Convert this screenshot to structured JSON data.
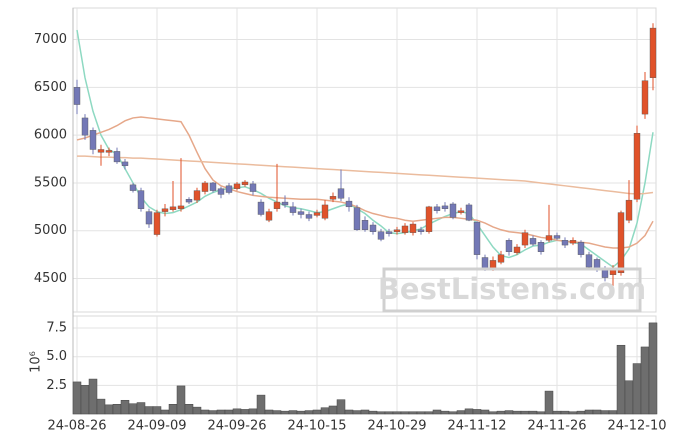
{
  "chart_data": [
    {
      "type": "candlestick",
      "watermark": "BestListens.com",
      "open": [
        6500,
        6180,
        6050,
        5820,
        5820,
        5830,
        5720,
        5480,
        5420,
        5200,
        4960,
        5200,
        5220,
        5230,
        5330,
        5320,
        5410,
        5500,
        5440,
        5470,
        5440,
        5480,
        5490,
        5300,
        5110,
        5230,
        5300,
        5250,
        5200,
        5170,
        5160,
        5130,
        5330,
        5440,
        5310,
        5240,
        5110,
        5060,
        4990,
        4990,
        4990,
        4980,
        4980,
        5010,
        4990,
        5250,
        5260,
        5280,
        5190,
        5270,
        5090,
        4720,
        4600,
        4670,
        4900,
        4770,
        4850,
        4920,
        4880,
        4900,
        4950,
        4900,
        4870,
        4880,
        4750,
        4700,
        4610,
        4540,
        4560,
        5110,
        5330,
        6220,
        6600
      ],
      "high": [
        6580,
        6220,
        6080,
        5900,
        5870,
        5870,
        5750,
        5500,
        5450,
        5230,
        5220,
        5280,
        5520,
        5760,
        5350,
        5450,
        5520,
        5510,
        5460,
        5500,
        5510,
        5530,
        5520,
        5330,
        5230,
        5700,
        5370,
        5300,
        5230,
        5200,
        5220,
        5320,
        5400,
        5640,
        5350,
        5270,
        5150,
        5090,
        5020,
        5020,
        5040,
        5080,
        5090,
        5040,
        5260,
        5280,
        5300,
        5300,
        5240,
        5290,
        5100,
        4750,
        4730,
        4790,
        4920,
        4860,
        5010,
        4950,
        4900,
        5270,
        4980,
        4930,
        4930,
        4900,
        4780,
        4720,
        4630,
        4640,
        5210,
        5530,
        6100,
        6660,
        7170
      ],
      "low": [
        6220,
        5950,
        5800,
        5680,
        5780,
        5700,
        5640,
        5400,
        5200,
        5030,
        4940,
        5150,
        5200,
        5200,
        5280,
        5290,
        5380,
        5400,
        5340,
        5380,
        5420,
        5460,
        5370,
        5150,
        5090,
        5200,
        5240,
        5160,
        5130,
        5100,
        5140,
        5110,
        5300,
        5310,
        5200,
        5000,
        4990,
        4960,
        4890,
        4940,
        4960,
        4960,
        4950,
        4960,
        4970,
        5180,
        5200,
        5120,
        5170,
        5100,
        4700,
        4580,
        4580,
        4650,
        4740,
        4750,
        4820,
        4840,
        4750,
        4880,
        4900,
        4820,
        4850,
        4720,
        4600,
        4570,
        4470,
        4420,
        4530,
        5080,
        5300,
        6170,
        6470
      ],
      "close": [
        6320,
        6000,
        5850,
        5850,
        5840,
        5720,
        5680,
        5420,
        5230,
        5070,
        5190,
        5230,
        5250,
        5260,
        5300,
        5420,
        5500,
        5420,
        5380,
        5400,
        5490,
        5510,
        5410,
        5170,
        5200,
        5300,
        5270,
        5190,
        5170,
        5130,
        5190,
        5270,
        5360,
        5340,
        5250,
        5010,
        5010,
        4990,
        4910,
        4970,
        5010,
        5050,
        5070,
        4990,
        5250,
        5210,
        5230,
        5140,
        5210,
        5110,
        4750,
        4600,
        4690,
        4750,
        4780,
        4830,
        4980,
        4860,
        4780,
        4950,
        4920,
        4850,
        4900,
        4750,
        4620,
        4600,
        4510,
        4610,
        5190,
        5320,
        6020,
        6570,
        7120
      ],
      "up_color": "#e0522a",
      "down_color": "#7378b6",
      "series": [
        {
          "color": "#8ed9c2",
          "values": [
            7100,
            6600,
            6250,
            6000,
            5850,
            5800,
            5650,
            5500,
            5350,
            5250,
            5200,
            5180,
            5190,
            5220,
            5260,
            5300,
            5360,
            5400,
            5430,
            5440,
            5450,
            5460,
            5430,
            5390,
            5340,
            5300,
            5260,
            5240,
            5230,
            5210,
            5190,
            5200,
            5230,
            5260,
            5280,
            5230,
            5180,
            5110,
            5050,
            4980,
            4970,
            4980,
            5000,
            5020,
            5070,
            5110,
            5150,
            5180,
            5200,
            5180,
            5070,
            4950,
            4830,
            4740,
            4720,
            4750,
            4800,
            4840,
            4850,
            4880,
            4900,
            4890,
            4880,
            4860,
            4800,
            4740,
            4680,
            4620,
            4690,
            4810,
            5080,
            5500,
            6030
          ]
        },
        {
          "color": "#e6a88a",
          "values": [
            5950,
            5970,
            6000,
            6030,
            6060,
            6100,
            6150,
            6180,
            6190,
            6180,
            6170,
            6160,
            6150,
            6140,
            6000,
            5820,
            5650,
            5530,
            5470,
            5440,
            5410,
            5390,
            5370,
            5360,
            5350,
            5345,
            5340,
            5335,
            5330,
            5330,
            5330,
            5320,
            5310,
            5300,
            5280,
            5250,
            5210,
            5180,
            5160,
            5140,
            5130,
            5110,
            5100,
            5110,
            5120,
            5130,
            5140,
            5140,
            5130,
            5120,
            5110,
            5080,
            5040,
            5010,
            4990,
            4980,
            4970,
            4950,
            4930,
            4920,
            4900,
            4890,
            4880,
            4880,
            4870,
            4850,
            4830,
            4820,
            4820,
            4830,
            4870,
            4950,
            5100
          ]
        },
        {
          "color": "#ebbc9e",
          "values": [
            5780,
            5780,
            5775,
            5770,
            5770,
            5765,
            5765,
            5760,
            5760,
            5755,
            5750,
            5745,
            5740,
            5735,
            5730,
            5725,
            5720,
            5715,
            5710,
            5705,
            5700,
            5695,
            5690,
            5685,
            5680,
            5675,
            5670,
            5665,
            5660,
            5655,
            5650,
            5645,
            5640,
            5635,
            5630,
            5625,
            5620,
            5615,
            5610,
            5605,
            5600,
            5595,
            5590,
            5585,
            5580,
            5575,
            5570,
            5565,
            5560,
            5555,
            5550,
            5545,
            5540,
            5535,
            5530,
            5525,
            5520,
            5510,
            5500,
            5490,
            5480,
            5470,
            5460,
            5450,
            5440,
            5430,
            5420,
            5410,
            5400,
            5390,
            5385,
            5390,
            5400
          ]
        }
      ],
      "ylim": [
        4150,
        7330
      ],
      "yticks": [
        4500,
        5000,
        5500,
        6000,
        6500,
        7000
      ],
      "grid": true
    },
    {
      "type": "bar",
      "ylabel": "10⁶",
      "color": "#6e6e6e",
      "categories": [
        "24-08-26",
        null,
        null,
        null,
        null,
        null,
        null,
        null,
        null,
        null,
        "24-09-09",
        null,
        null,
        null,
        null,
        null,
        null,
        null,
        null,
        null,
        "24-09-26",
        null,
        null,
        null,
        null,
        null,
        null,
        null,
        null,
        null,
        "24-10-15",
        null,
        null,
        null,
        null,
        null,
        null,
        null,
        null,
        null,
        "24-10-29",
        null,
        null,
        null,
        null,
        null,
        null,
        null,
        null,
        null,
        "24-11-12",
        null,
        null,
        null,
        null,
        null,
        null,
        null,
        null,
        null,
        "24-11-26",
        null,
        null,
        null,
        null,
        null,
        null,
        null,
        null,
        null,
        "24-12-10",
        null,
        null
      ],
      "values": [
        2.8,
        2.5,
        3.05,
        1.3,
        0.8,
        0.85,
        1.2,
        0.9,
        1.0,
        0.65,
        0.65,
        0.35,
        0.85,
        2.45,
        0.85,
        0.6,
        0.35,
        0.3,
        0.35,
        0.35,
        0.45,
        0.4,
        0.45,
        1.65,
        0.35,
        0.3,
        0.25,
        0.3,
        0.25,
        0.3,
        0.35,
        0.55,
        0.7,
        1.25,
        0.35,
        0.3,
        0.35,
        0.25,
        0.2,
        0.2,
        0.2,
        0.2,
        0.2,
        0.2,
        0.2,
        0.35,
        0.25,
        0.2,
        0.3,
        0.45,
        0.4,
        0.35,
        0.2,
        0.25,
        0.3,
        0.25,
        0.25,
        0.25,
        0.2,
        2.0,
        0.25,
        0.25,
        0.2,
        0.25,
        0.35,
        0.35,
        0.3,
        0.3,
        6.0,
        2.9,
        4.4,
        5.85,
        7.95
      ],
      "ylim": [
        0,
        8.55
      ],
      "yticks": [
        2.5,
        {
          "value": 5,
          "label": "5.0"
        },
        7.5
      ],
      "grid": true
    }
  ]
}
